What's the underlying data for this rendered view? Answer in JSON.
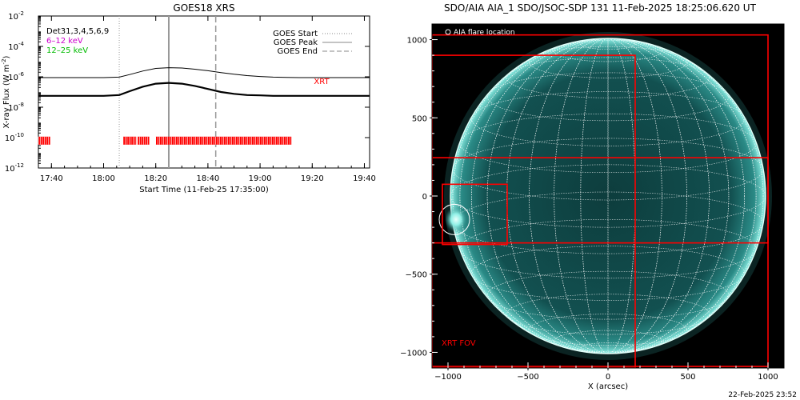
{
  "footer_timestamp": "22-Feb-2025 23:52",
  "chart_data": [
    {
      "type": "line",
      "title": "GOES18 XRS",
      "xlabel": "Start Time (11-Feb-25 17:35:00)",
      "ylabel": "X-ray Flux (W m",
      "ylabel_sup": "-2",
      "ylabel_close": ")",
      "x_tick_labels": [
        "17:40",
        "18:00",
        "18:20",
        "18:40",
        "19:00",
        "19:20",
        "19:40"
      ],
      "x_ticks_minutes": [
        1060,
        1080,
        1100,
        1120,
        1140,
        1160,
        1180
      ],
      "x_range_minutes": [
        1055,
        1182
      ],
      "y_scale": "log",
      "y_ticks": [
        {
          "exp": -2,
          "base": "10",
          "sup": "-2"
        },
        {
          "exp": -4,
          "base": "10",
          "sup": "-4"
        },
        {
          "exp": -6,
          "base": "10",
          "sup": "-6"
        },
        {
          "exp": -8,
          "base": "10",
          "sup": "-8"
        },
        {
          "exp": -10,
          "base": "10",
          "sup": "-10"
        },
        {
          "exp": -12,
          "base": "10",
          "sup": "-12"
        }
      ],
      "y_range_exp": [
        -12,
        -2
      ],
      "legend_left": [
        {
          "text": "Det31,3,4,5,6,9",
          "color": "#000000"
        },
        {
          "text": "6–12 keV",
          "color": "#cc00cc"
        },
        {
          "text": "12–25 keV",
          "color": "#00bb00"
        }
      ],
      "legend_right": [
        {
          "text": "GOES Start",
          "style": "dotted"
        },
        {
          "text": "GOES Peak",
          "style": "solid"
        },
        {
          "text": "GOES End",
          "style": "dashed"
        }
      ],
      "event_lines_minutes": {
        "start": 1086,
        "peak": 1105,
        "end": 1123
      },
      "series": [
        {
          "label": "long",
          "color": "#000000",
          "x": [
            1055,
            1060,
            1070,
            1080,
            1086,
            1090,
            1095,
            1100,
            1105,
            1110,
            1115,
            1120,
            1125,
            1130,
            1135,
            1140,
            1145,
            1150,
            1155,
            1160,
            1170,
            1182
          ],
          "y_exp": [
            -6.05,
            -6.05,
            -6.05,
            -6.05,
            -6.02,
            -5.85,
            -5.62,
            -5.45,
            -5.4,
            -5.42,
            -5.5,
            -5.6,
            -5.72,
            -5.83,
            -5.92,
            -5.98,
            -6.02,
            -6.04,
            -6.05,
            -6.05,
            -6.05,
            -6.05
          ]
        },
        {
          "label": "short",
          "color": "#000000",
          "x": [
            1055,
            1060,
            1070,
            1080,
            1086,
            1090,
            1095,
            1100,
            1105,
            1110,
            1115,
            1120,
            1125,
            1130,
            1135,
            1140,
            1145,
            1150,
            1155,
            1160,
            1170,
            1182
          ],
          "y_exp": [
            -7.25,
            -7.25,
            -7.25,
            -7.25,
            -7.2,
            -6.95,
            -6.65,
            -6.45,
            -6.4,
            -6.45,
            -6.6,
            -6.8,
            -7.0,
            -7.12,
            -7.2,
            -7.22,
            -7.25,
            -7.25,
            -7.25,
            -7.25,
            -7.25,
            -7.25
          ]
        }
      ],
      "xrt_label": "XRT",
      "xrt_color": "#ff0000",
      "xrt_level_exp": -10.2,
      "xrt_segments_minutes": [
        [
          1055,
          1059.5
        ],
        [
          1087.5,
          1092.5
        ],
        [
          1093,
          1097.5
        ],
        [
          1100,
          1152
        ]
      ]
    },
    {
      "type": "image",
      "title": "SDO/AIA AIA_1 SDO/JSOC-SDP 131 11-Feb-2025 18:25:06.620 UT",
      "xlabel": "X (arcsec)",
      "x_ticks": [
        -1000,
        -500,
        0,
        500,
        1000
      ],
      "y_ticks": [
        -1000,
        -500,
        0,
        500,
        1000
      ],
      "x_tick_labels": [
        "−1000",
        "−500",
        "0",
        "500",
        "1000"
      ],
      "y_tick_labels": [
        "−1000",
        "−500",
        "0",
        "500",
        "1000"
      ],
      "x_range": [
        -1100,
        1100
      ],
      "y_range": [
        -1100,
        1100
      ],
      "solar_radius_arcsec": 985,
      "legend_text": "AIA flare location",
      "fov_label": "XRT FOV",
      "fov_color": "#ff0000",
      "flare_location": {
        "x": -960,
        "y": -150,
        "r": 95
      },
      "fov_boxes": [
        {
          "x0": -1100,
          "x1": 1000,
          "y0": -1090,
          "y1": 1030
        },
        {
          "x0": -1100,
          "x1": 170,
          "y0": -1100,
          "y1": 900
        },
        {
          "x0": -1100,
          "x1": 1000,
          "y0": -300,
          "y1": 245
        },
        {
          "x0": -1035,
          "x1": -630,
          "y0": -310,
          "y1": 75
        }
      ]
    }
  ]
}
